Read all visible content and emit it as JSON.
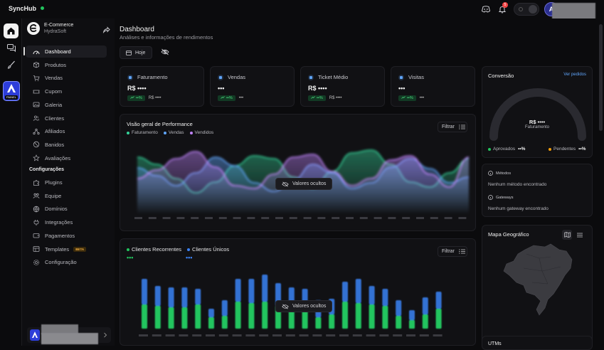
{
  "app": {
    "brand": "SyncHub",
    "notifications": "5",
    "user_initial": "A"
  },
  "rail": {
    "app_tag": "PAINEL"
  },
  "store": {
    "name": "E-Commerce",
    "org": "HydraSoft"
  },
  "sidebar": {
    "items": [
      {
        "label": "Dashboard",
        "icon": "gauge-icon",
        "active": true
      },
      {
        "label": "Produtos",
        "icon": "box-icon"
      },
      {
        "label": "Vendas",
        "icon": "cart-icon"
      },
      {
        "label": "Cupom",
        "icon": "ticket-icon"
      },
      {
        "label": "Galeria",
        "icon": "image-icon"
      },
      {
        "label": "Clientes",
        "icon": "users-icon"
      },
      {
        "label": "Afiliados",
        "icon": "affiliate-icon"
      },
      {
        "label": "Banidos",
        "icon": "ban-icon"
      },
      {
        "label": "Avaliações",
        "icon": "star-icon"
      }
    ],
    "config_title": "Configurações",
    "config_items": [
      {
        "label": "Plugins",
        "icon": "puzzle-icon"
      },
      {
        "label": "Equipe",
        "icon": "team-icon"
      },
      {
        "label": "Domínios",
        "icon": "globe-icon"
      },
      {
        "label": "Integrações",
        "icon": "plug-icon"
      },
      {
        "label": "Pagamentos",
        "icon": "wallet-icon"
      },
      {
        "label": "Templates",
        "icon": "template-icon",
        "badge": "BETA"
      },
      {
        "label": "Configuração",
        "icon": "gear-icon"
      }
    ]
  },
  "header": {
    "title": "Dashboard",
    "subtitle": "Análises e informações de rendimentos",
    "today_label": "Hoje"
  },
  "kpis": [
    {
      "title": "Faturamento",
      "value": "R$ ••••",
      "trend": "••%",
      "sub": "R$ ••••",
      "color": "#60a5fa"
    },
    {
      "title": "Vendas",
      "value": "•••",
      "trend": "••%",
      "sub": "•••",
      "color": "#60a5fa"
    },
    {
      "title": "Ticket Médio",
      "value": "R$ ••••",
      "trend": "••%",
      "sub": "R$ ••••",
      "color": "#60a5fa"
    },
    {
      "title": "Visitas",
      "value": "•••",
      "trend": "••%",
      "sub": "•••",
      "color": "#60a5fa"
    }
  ],
  "performance": {
    "title": "Visão geral de Performance",
    "filter_label": "Filtrar",
    "hidden_label": "Valores ocultos",
    "legend": [
      {
        "name": "Faturamento",
        "color": "#34d399"
      },
      {
        "name": "Vendas",
        "color": "#60a5fa"
      },
      {
        "name": "Vendidos",
        "color": "#c084fc"
      }
    ]
  },
  "clients": {
    "title_recurring": "Clientes Recorrentes",
    "title_unique": "Clientes Únicos",
    "value_recurring": "•••",
    "value_unique": "•••",
    "filter_label": "Filtrar",
    "hidden_label": "Valores ocultos",
    "color_recurring": "#22c55e",
    "color_unique": "#3b82f6"
  },
  "conversion": {
    "title": "Conversão",
    "link": "Ver pedidos",
    "value": "R$ ••••",
    "label": "Faturamento",
    "approved_label": "Aprovados",
    "approved_value": "••%",
    "pending_label": "Pendentes",
    "pending_value": "••%"
  },
  "methods": {
    "title": "Métodos",
    "empty": "Nenhum método encontrado"
  },
  "gateways": {
    "title": "Gateways",
    "empty": "Nenhum gateway encontrado"
  },
  "map": {
    "title": "Mapa Geográfico"
  },
  "utms": {
    "title": "UTMs"
  }
}
